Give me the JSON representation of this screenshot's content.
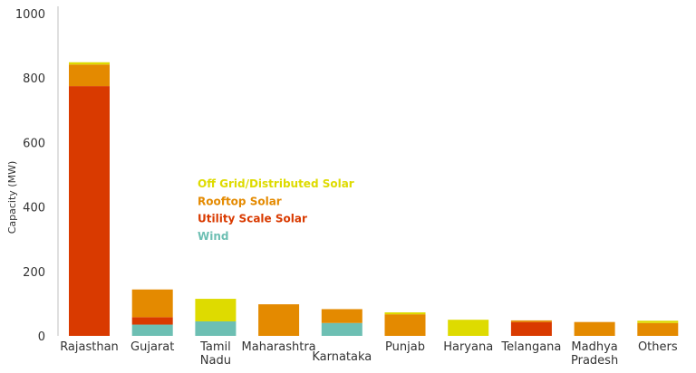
{
  "chart_data": {
    "type": "bar",
    "stacked": true,
    "ylabel": "Capacity (MW)",
    "ylim": [
      0,
      1000
    ],
    "yticks": [
      0,
      200,
      400,
      600,
      800,
      1000
    ],
    "grid": false,
    "legend_position": "center",
    "categories": [
      [
        "Rajasthan"
      ],
      [
        "Gujarat"
      ],
      [
        "Tamil",
        "Nadu"
      ],
      [
        "Maharashtra"
      ],
      [
        "Karnataka"
      ],
      [
        "Punjab"
      ],
      [
        "Haryana"
      ],
      [
        "Telangana"
      ],
      [
        "Madhya",
        "Pradesh"
      ],
      [
        "Others"
      ]
    ],
    "series": [
      {
        "name": "Wind",
        "color": "#6dbfb3",
        "values": [
          0,
          35,
          45,
          0,
          40,
          0,
          0,
          0,
          0,
          0
        ]
      },
      {
        "name": "Utility Scale Solar",
        "color": "#d93a00",
        "values": [
          775,
          23,
          0,
          0,
          0,
          0,
          0,
          43,
          0,
          0
        ]
      },
      {
        "name": "Rooftop Solar",
        "color": "#e48a00",
        "values": [
          67,
          86,
          0,
          98,
          43,
          67,
          0,
          5,
          43,
          40
        ]
      },
      {
        "name": "Off Grid/Distributed Solar",
        "color": "#dedb00",
        "values": [
          7,
          0,
          70,
          0,
          0,
          6,
          50,
          0,
          0,
          7
        ]
      }
    ],
    "legend_order": [
      "Off Grid/Distributed Solar",
      "Rooftop Solar",
      "Utility Scale Solar",
      "Wind"
    ]
  }
}
